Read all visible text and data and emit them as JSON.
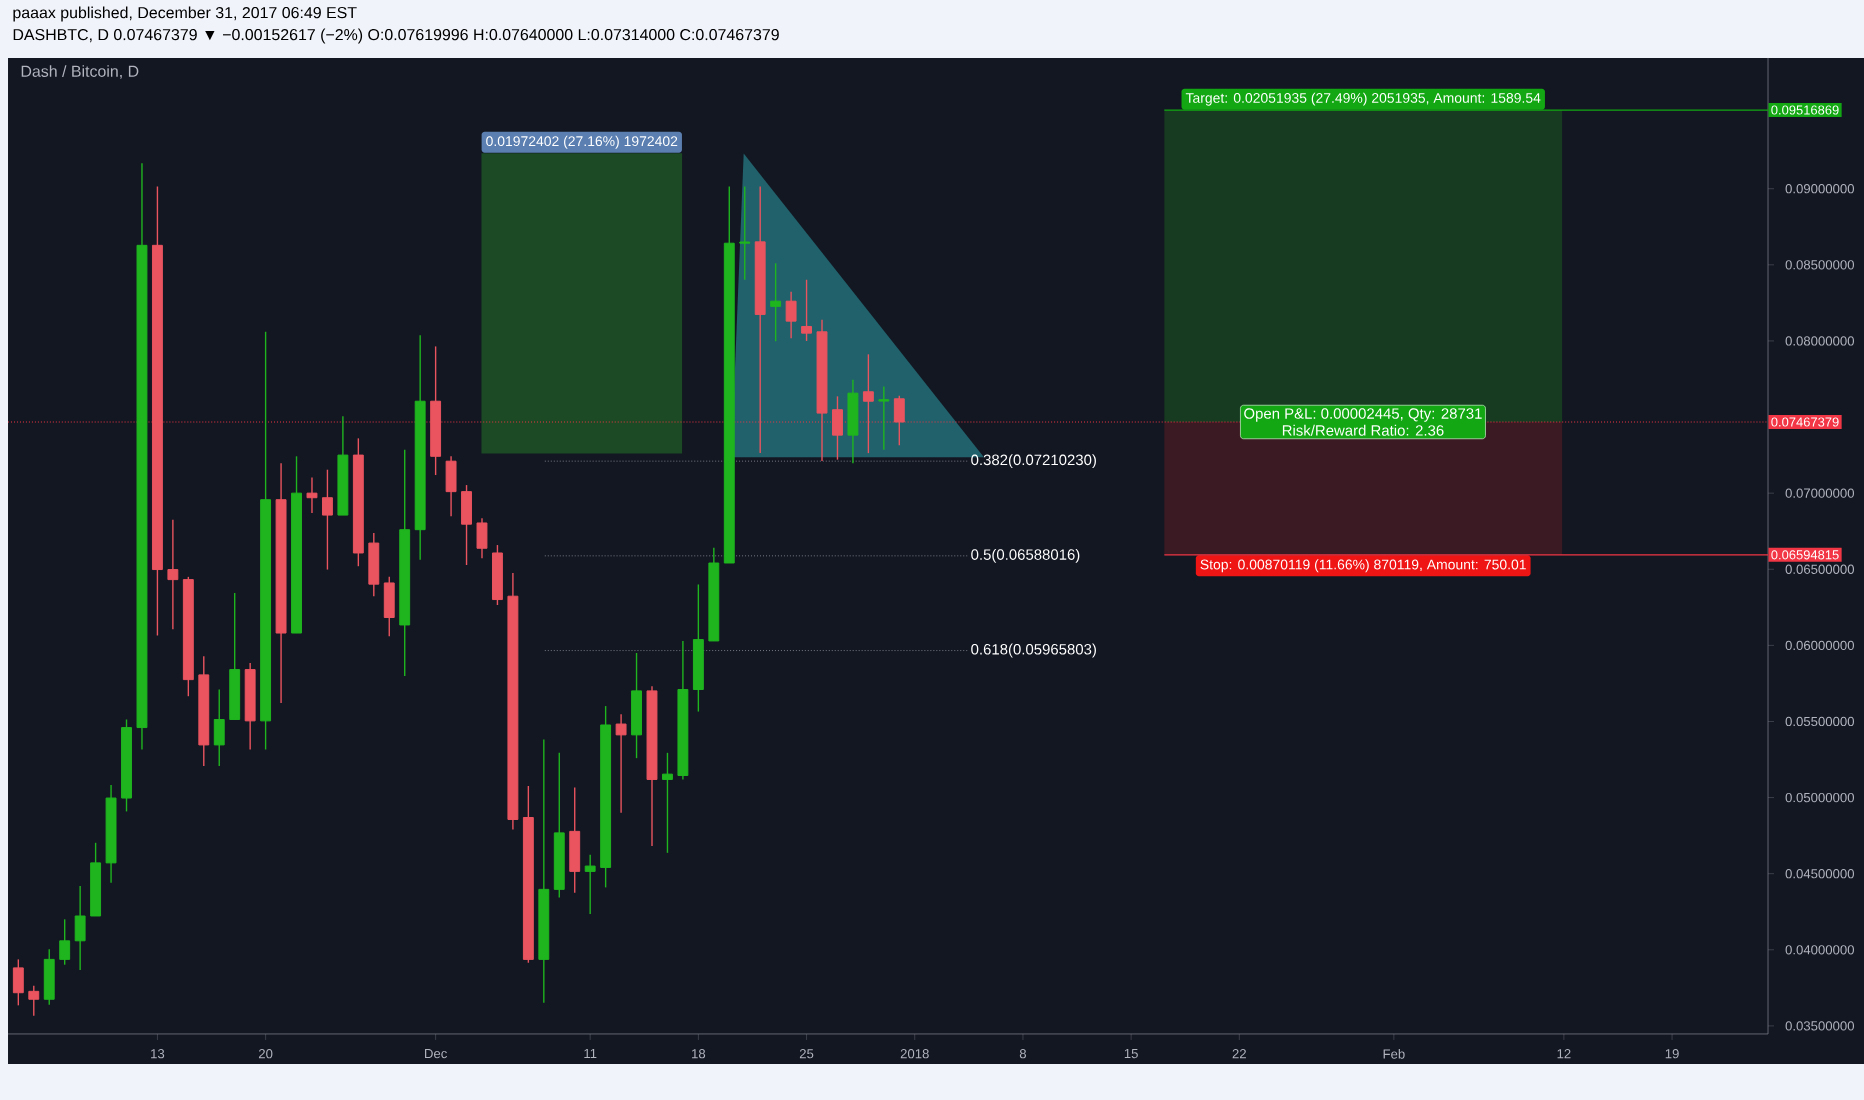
{
  "chart_data": {
    "type": "candlestick",
    "title": "Dash / Bitcoin, D",
    "annotations": [
      "paaax published, December 31, 2017 06:49 EST",
      "DASHBTC, D  0.07467379 ▼ −0.00152617 (−2%) O:0.07619996 H:0.07640000 L:0.07314000 C:0.07467379",
      {
        "text": "Open P&L: 0.00002445, Qty: 28731",
        "x": "2018-01-30",
        "y": 0.07467379
      },
      {
        "text": "Risk/Reward Ratio: 2.36",
        "x": "2018-01-30",
        "y": 0.07467379
      }
    ],
    "x": [
      "2017-11-04",
      "2017-11-05",
      "2017-11-06",
      "2017-11-07",
      "2017-11-08",
      "2017-11-09",
      "2017-11-10",
      "2017-11-11",
      "2017-11-12",
      "2017-11-13",
      "2017-11-14",
      "2017-11-15",
      "2017-11-16",
      "2017-11-17",
      "2017-11-18",
      "2017-11-19",
      "2017-11-20",
      "2017-11-21",
      "2017-11-22",
      "2017-11-23",
      "2017-11-24",
      "2017-11-25",
      "2017-11-26",
      "2017-11-27",
      "2017-11-28",
      "2017-11-29",
      "2017-11-30",
      "2017-12-01",
      "2017-12-02",
      "2017-12-03",
      "2017-12-04",
      "2017-12-05",
      "2017-12-06",
      "2017-12-07",
      "2017-12-08",
      "2017-12-09",
      "2017-12-10",
      "2017-12-11",
      "2017-12-12",
      "2017-12-13",
      "2017-12-14",
      "2017-12-15",
      "2017-12-16",
      "2017-12-17",
      "2017-12-18",
      "2017-12-19",
      "2017-12-20",
      "2017-12-21",
      "2017-12-22",
      "2017-12-23",
      "2017-12-24",
      "2017-12-25",
      "2017-12-26",
      "2017-12-27",
      "2017-12-28",
      "2017-12-29",
      "2017-12-30",
      "2017-12-31"
    ],
    "ohlc": [
      [
        0.03881,
        0.03937,
        0.03635,
        0.03718
      ],
      [
        0.03727,
        0.03763,
        0.03566,
        0.03675
      ],
      [
        0.03675,
        0.04003,
        0.03639,
        0.03937
      ],
      [
        0.03937,
        0.042,
        0.03902,
        0.04059
      ],
      [
        0.04059,
        0.04419,
        0.03868,
        0.04222
      ],
      [
        0.04222,
        0.04703,
        0.04222,
        0.04571
      ],
      [
        0.04571,
        0.05083,
        0.0444,
        0.04997
      ],
      [
        0.04997,
        0.05513,
        0.04909,
        0.0546
      ],
      [
        0.0546,
        0.09167,
        0.05316,
        0.08628
      ],
      [
        0.08628,
        0.09015,
        0.06064,
        0.06498
      ],
      [
        0.06498,
        0.06826,
        0.06106,
        0.06432
      ],
      [
        0.06432,
        0.0645,
        0.05666,
        0.05775
      ],
      [
        0.05806,
        0.05929,
        0.05207,
        0.05346
      ],
      [
        0.05346,
        0.0571,
        0.05207,
        0.05513
      ],
      [
        0.05513,
        0.06344,
        0.05513,
        0.05841
      ],
      [
        0.05841,
        0.05884,
        0.05316,
        0.05504
      ],
      [
        0.05504,
        0.0806,
        0.05316,
        0.06957
      ],
      [
        0.06957,
        0.07197,
        0.05622,
        0.06081
      ],
      [
        0.06081,
        0.07242,
        0.06081,
        0.07
      ],
      [
        0.07,
        0.07102,
        0.06869,
        0.0697
      ],
      [
        0.0697,
        0.07154,
        0.06498,
        0.06856
      ],
      [
        0.06856,
        0.07505,
        0.06856,
        0.0725
      ],
      [
        0.0725,
        0.0736,
        0.0652,
        0.06607
      ],
      [
        0.06672,
        0.06738,
        0.06323,
        0.06402
      ],
      [
        0.0641,
        0.0645,
        0.0606,
        0.06183
      ],
      [
        0.06134,
        0.07285,
        0.05798,
        0.0676
      ],
      [
        0.0676,
        0.08038,
        0.06563,
        0.07604
      ],
      [
        0.07604,
        0.07964,
        0.07119,
        0.07242
      ],
      [
        0.0721,
        0.07242,
        0.06848,
        0.0701
      ],
      [
        0.0701,
        0.07053,
        0.06528,
        0.06796
      ],
      [
        0.06804,
        0.06835,
        0.06572,
        0.06638
      ],
      [
        0.06607,
        0.06659,
        0.06265,
        0.06301
      ],
      [
        0.06323,
        0.06475,
        0.04791,
        0.04856
      ],
      [
        0.04869,
        0.05076,
        0.03915,
        0.03937
      ],
      [
        0.03937,
        0.05381,
        0.03652,
        0.04397
      ],
      [
        0.04397,
        0.05294,
        0.04344,
        0.04768
      ],
      [
        0.04778,
        0.05066,
        0.04374,
        0.04515
      ],
      [
        0.04515,
        0.04624,
        0.04235,
        0.0455
      ],
      [
        0.04541,
        0.05601,
        0.0441,
        0.05477
      ],
      [
        0.05483,
        0.05548,
        0.049,
        0.05412
      ],
      [
        0.05412,
        0.0595,
        0.05259,
        0.05701
      ],
      [
        0.05701,
        0.05732,
        0.04682,
        0.05119
      ],
      [
        0.05119,
        0.05294,
        0.04637,
        0.05154
      ],
      [
        0.05145,
        0.06029,
        0.05119,
        0.0571
      ],
      [
        0.0571,
        0.064,
        0.05565,
        0.06038
      ],
      [
        0.06029,
        0.06642,
        0.06029,
        0.06541
      ],
      [
        0.06541,
        0.09015,
        0.06541,
        0.08642
      ],
      [
        0.08642,
        0.09015,
        0.08402,
        0.0865
      ],
      [
        0.08651,
        0.09015,
        0.07263,
        0.08174
      ],
      [
        0.08227,
        0.0851,
        0.07998,
        0.08261
      ],
      [
        0.08261,
        0.08323,
        0.08017,
        0.0813
      ],
      [
        0.08095,
        0.08402,
        0.08,
        0.08051
      ],
      [
        0.0806,
        0.08139,
        0.07211,
        0.07526
      ],
      [
        0.07548,
        0.07636,
        0.0722,
        0.07381
      ],
      [
        0.07381,
        0.07745,
        0.07197,
        0.07657
      ],
      [
        0.07666,
        0.07912,
        0.07263,
        0.07604
      ],
      [
        0.07605,
        0.07701,
        0.07285,
        0.07614
      ],
      [
        0.07619996,
        0.0764,
        0.07314,
        0.07467379
      ]
    ],
    "xlim": [
      "2017-11-03T08:00",
      "2018-02-25T05:00"
    ],
    "xticks": [
      {
        "value": "2017-11-13",
        "label": "13"
      },
      {
        "value": "2017-11-20",
        "label": "20"
      },
      {
        "value": "2017-12-01",
        "label": "Dec"
      },
      {
        "value": "2017-12-11",
        "label": "11"
      },
      {
        "value": "2017-12-18",
        "label": "18"
      },
      {
        "value": "2017-12-25",
        "label": "25"
      },
      {
        "value": "2018-01-01",
        "label": "2018"
      },
      {
        "value": "2018-01-08",
        "label": "8"
      },
      {
        "value": "2018-01-15",
        "label": "15"
      },
      {
        "value": "2018-01-22",
        "label": "22"
      },
      {
        "value": "2018-02-01",
        "label": "Feb"
      },
      {
        "value": "2018-02-12",
        "label": "12"
      },
      {
        "value": "2018-02-19",
        "label": "19"
      }
    ],
    "ylim": [
      0.03447,
      0.09859
    ],
    "yticks": [
      {
        "value": 0.035,
        "label": "0.03500000"
      },
      {
        "value": 0.04,
        "label": "0.04000000"
      },
      {
        "value": 0.045,
        "label": "0.04500000"
      },
      {
        "value": 0.05,
        "label": "0.05000000"
      },
      {
        "value": 0.055,
        "label": "0.05500000"
      },
      {
        "value": 0.06,
        "label": "0.06000000"
      },
      {
        "value": 0.065,
        "label": "0.06500000"
      },
      {
        "value": 0.07,
        "label": "0.07000000"
      },
      {
        "value": 0.08,
        "label": "0.08000000"
      },
      {
        "value": 0.085,
        "label": "0.08500000"
      },
      {
        "value": 0.09,
        "label": "0.09000000"
      }
    ],
    "ref_lines": [
      {
        "axis": "y",
        "value": 0.07467379,
        "label": "0.07467379",
        "color": "#f23645",
        "line_style": "dotted"
      },
      {
        "axis": "y",
        "value": 0.09516869,
        "label": "0.09516869",
        "color": "#13a813",
        "line_style": "solid"
      },
      {
        "axis": "y",
        "value": 0.06594815,
        "label": "0.06594815",
        "color": "#f23645",
        "line_style": "solid"
      },
      {
        "axis": "y",
        "value": 0.0721023,
        "label": "0.382(0.07210230)",
        "line_style": "dotted"
      },
      {
        "axis": "y",
        "value": 0.06588016,
        "label": "0.5(0.06588016)",
        "line_style": "dotted"
      },
      {
        "axis": "y",
        "value": 0.05965803,
        "label": "0.618(0.05965803)",
        "line_style": "dotted"
      }
    ],
    "bands": [
      {
        "axis": "y",
        "from": 0.07261,
        "to": 0.09233,
        "label": "0.01972402 (27.16%) 1972402",
        "color": "#1b4a24"
      },
      {
        "axis": "y",
        "from": 0.07467379,
        "to": 0.09516869,
        "label": "Target: 0.02051935 (27.49%) 2051935, Amount: 1589.54",
        "color": "#173b21"
      },
      {
        "axis": "y",
        "from": 0.06594815,
        "to": 0.07467379,
        "label": "Stop: 0.00870119 (11.66%) 870119, Amount: 750.01",
        "color": "#3c1a23"
      }
    ]
  }
}
